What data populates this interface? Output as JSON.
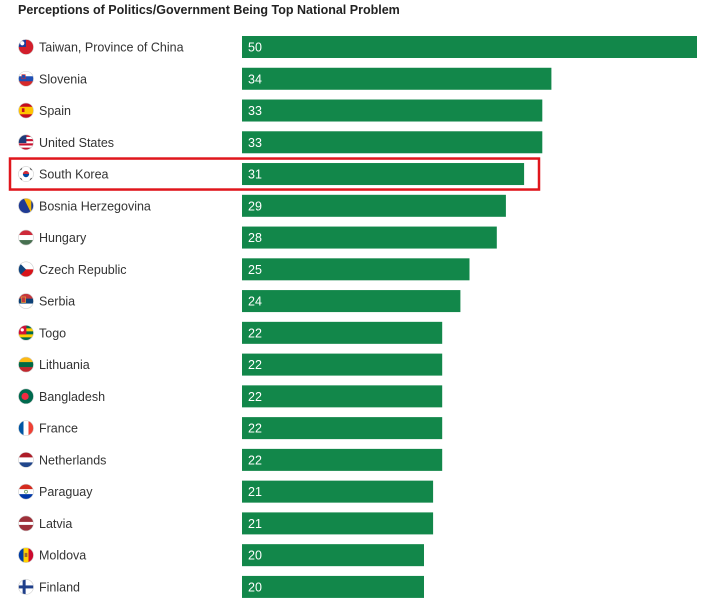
{
  "chart_data": {
    "type": "bar",
    "orientation": "horizontal",
    "title": "Perceptions of Politics/Government Being Top National Problem",
    "xlabel": "",
    "ylabel": "",
    "xlim": [
      0,
      50
    ],
    "grid": false,
    "bar_color": "#12874a",
    "highlight_color": "#e0161c",
    "highlighted_category": "South Korea",
    "categories": [
      "Taiwan, Province of China",
      "Slovenia",
      "Spain",
      "United States",
      "South Korea",
      "Bosnia Herzegovina",
      "Hungary",
      "Czech Republic",
      "Serbia",
      "Togo",
      "Lithuania",
      "Bangladesh",
      "France",
      "Netherlands",
      "Paraguay",
      "Latvia",
      "Moldova",
      "Finland"
    ],
    "values": [
      50,
      34,
      33,
      33,
      31,
      29,
      28,
      25,
      24,
      22,
      22,
      22,
      22,
      22,
      21,
      21,
      20,
      20
    ],
    "flags": [
      "taiwan-flag-icon",
      "slovenia-flag-icon",
      "spain-flag-icon",
      "united-states-flag-icon",
      "south-korea-flag-icon",
      "bosnia-herzegovina-flag-icon",
      "hungary-flag-icon",
      "czech-republic-flag-icon",
      "serbia-flag-icon",
      "togo-flag-icon",
      "lithuania-flag-icon",
      "bangladesh-flag-icon",
      "france-flag-icon",
      "netherlands-flag-icon",
      "paraguay-flag-icon",
      "latvia-flag-icon",
      "moldova-flag-icon",
      "finland-flag-icon"
    ]
  }
}
